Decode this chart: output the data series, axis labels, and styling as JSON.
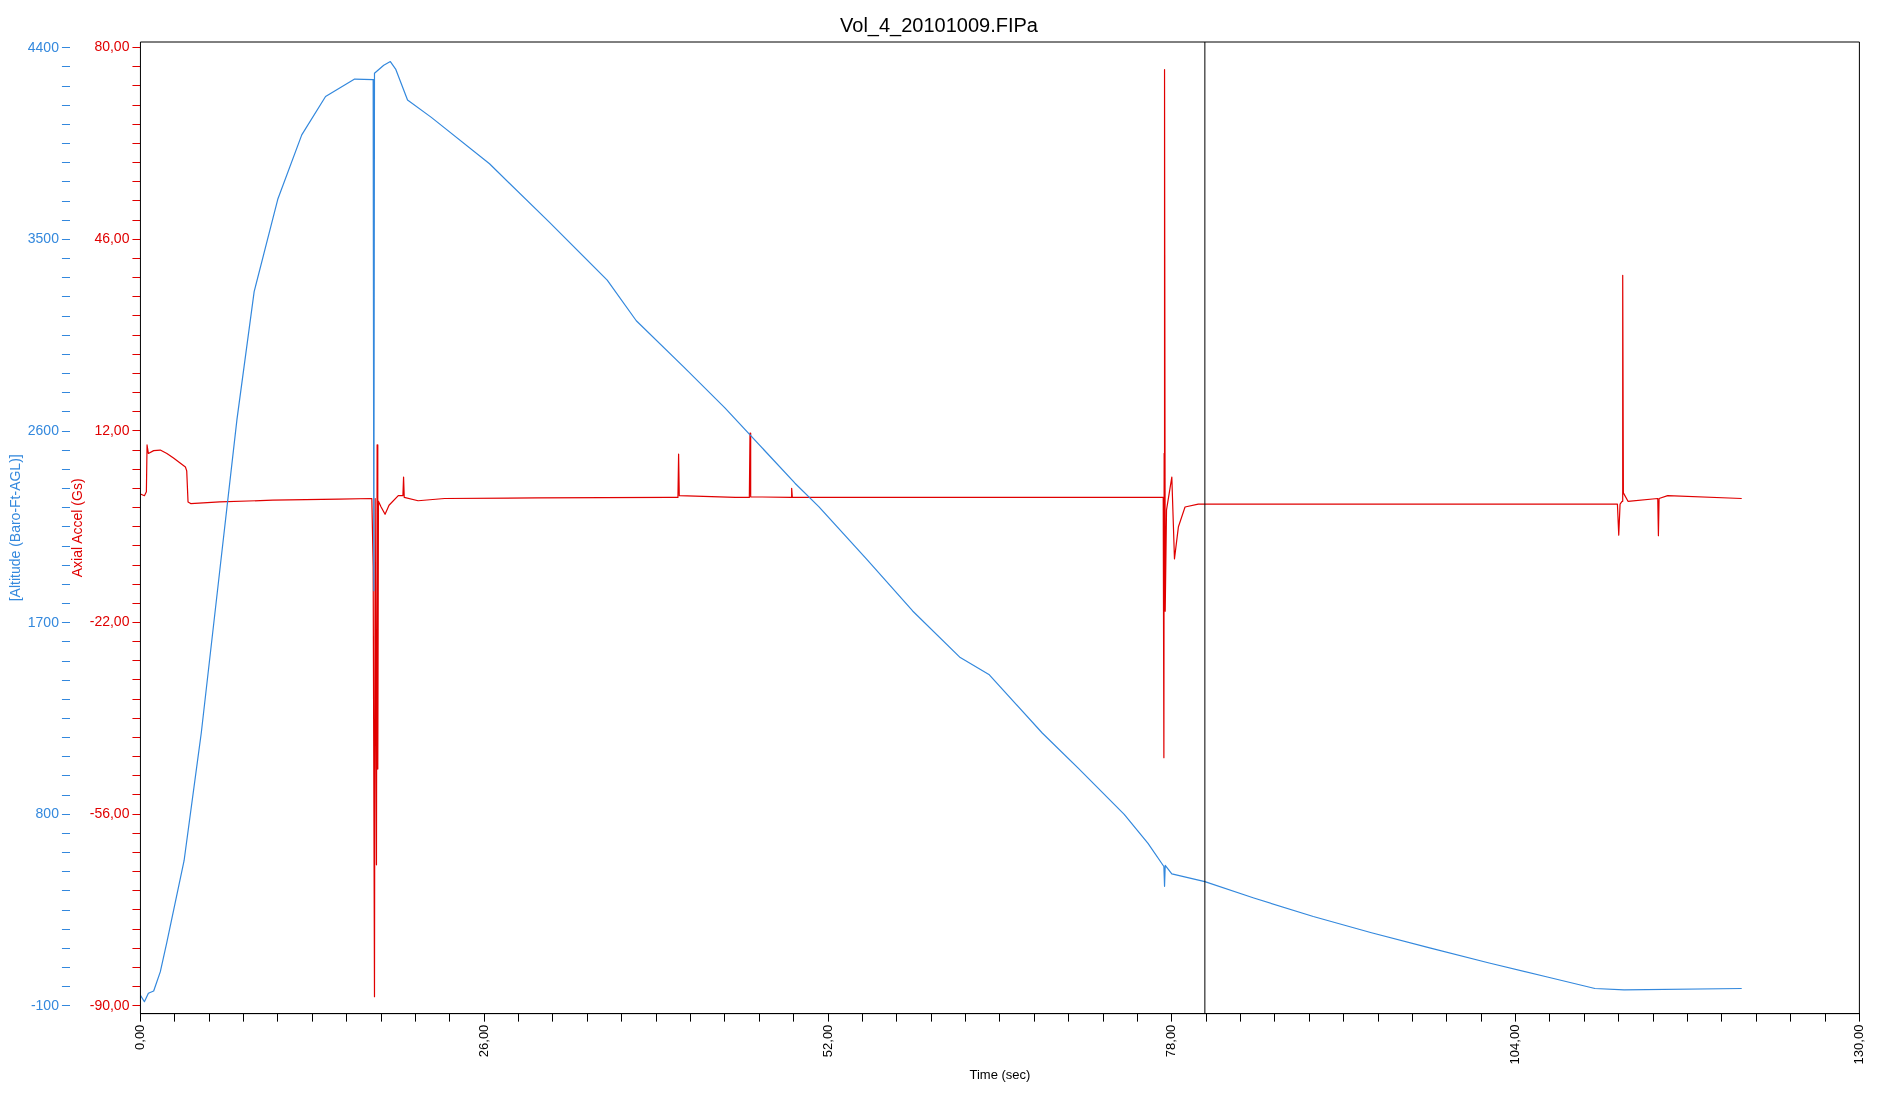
{
  "chart_data": {
    "type": "line",
    "title": "Vol_4_20101009.FIPa",
    "xlabel": "Time (sec)",
    "ylabel": "Axial Accel (Gs)",
    "y2label": "[Altitude (Baro-Ft-AGL)]",
    "marker": "none",
    "line_style": "solid",
    "xlim": [
      0,
      130
    ],
    "xticks": [
      {
        "value": 0,
        "label": "0,00"
      },
      {
        "value": 2.6,
        "label": null
      },
      {
        "value": 5.2,
        "label": null
      },
      {
        "value": 7.8,
        "label": null
      },
      {
        "value": 10.4,
        "label": null
      },
      {
        "value": 13,
        "label": null
      },
      {
        "value": 15.6,
        "label": null
      },
      {
        "value": 18.2,
        "label": null
      },
      {
        "value": 20.8,
        "label": null
      },
      {
        "value": 23.4,
        "label": null
      },
      {
        "value": 26,
        "label": "26,00"
      },
      {
        "value": 28.6,
        "label": null
      },
      {
        "value": 31.2,
        "label": null
      },
      {
        "value": 33.8,
        "label": null
      },
      {
        "value": 36.4,
        "label": null
      },
      {
        "value": 39,
        "label": null
      },
      {
        "value": 41.6,
        "label": null
      },
      {
        "value": 44.2,
        "label": null
      },
      {
        "value": 46.8,
        "label": null
      },
      {
        "value": 49.4,
        "label": null
      },
      {
        "value": 52,
        "label": "52,00"
      },
      {
        "value": 54.6,
        "label": null
      },
      {
        "value": 57.2,
        "label": null
      },
      {
        "value": 59.8,
        "label": null
      },
      {
        "value": 62.4,
        "label": null
      },
      {
        "value": 65,
        "label": null
      },
      {
        "value": 67.6,
        "label": null
      },
      {
        "value": 70.2,
        "label": null
      },
      {
        "value": 72.8,
        "label": null
      },
      {
        "value": 75.4,
        "label": null
      },
      {
        "value": 78,
        "label": "78,00"
      },
      {
        "value": 80.6,
        "label": null
      },
      {
        "value": 83.2,
        "label": null
      },
      {
        "value": 85.8,
        "label": null
      },
      {
        "value": 88.4,
        "label": null
      },
      {
        "value": 91,
        "label": null
      },
      {
        "value": 93.6,
        "label": null
      },
      {
        "value": 96.2,
        "label": null
      },
      {
        "value": 98.8,
        "label": null
      },
      {
        "value": 101.4,
        "label": null
      },
      {
        "value": 104,
        "label": "104,00"
      },
      {
        "value": 106.6,
        "label": null
      },
      {
        "value": 109.2,
        "label": null
      },
      {
        "value": 111.8,
        "label": null
      },
      {
        "value": 114.4,
        "label": null
      },
      {
        "value": 117,
        "label": null
      },
      {
        "value": 119.6,
        "label": null
      },
      {
        "value": 122.2,
        "label": null
      },
      {
        "value": 124.8,
        "label": null
      },
      {
        "value": 127.4,
        "label": null
      },
      {
        "value": 130,
        "label": "130,00"
      }
    ],
    "ylim": [
      -91.4,
      81
    ],
    "yticks": [
      {
        "value": -90,
        "label": "-90,00"
      },
      {
        "value": -86.6,
        "label": null
      },
      {
        "value": -83.2,
        "label": null
      },
      {
        "value": -79.8,
        "label": null
      },
      {
        "value": -76.4,
        "label": null
      },
      {
        "value": -73,
        "label": null
      },
      {
        "value": -69.6,
        "label": null
      },
      {
        "value": -66.2,
        "label": null
      },
      {
        "value": -62.8,
        "label": null
      },
      {
        "value": -59.4,
        "label": null
      },
      {
        "value": -56,
        "label": "-56,00"
      },
      {
        "value": -52.6,
        "label": null
      },
      {
        "value": -49.2,
        "label": null
      },
      {
        "value": -45.8,
        "label": null
      },
      {
        "value": -42.4,
        "label": null
      },
      {
        "value": -39,
        "label": null
      },
      {
        "value": -35.6,
        "label": null
      },
      {
        "value": -32.2,
        "label": null
      },
      {
        "value": -28.8,
        "label": null
      },
      {
        "value": -25.4,
        "label": null
      },
      {
        "value": -22,
        "label": "-22,00"
      },
      {
        "value": -18.6,
        "label": null
      },
      {
        "value": -15.2,
        "label": null
      },
      {
        "value": -11.8,
        "label": null
      },
      {
        "value": -8.4,
        "label": null
      },
      {
        "value": -5,
        "label": null
      },
      {
        "value": -1.6,
        "label": null
      },
      {
        "value": 1.8,
        "label": null
      },
      {
        "value": 5.2,
        "label": null
      },
      {
        "value": 8.6,
        "label": null
      },
      {
        "value": 12,
        "label": "12,00"
      },
      {
        "value": 15.4,
        "label": null
      },
      {
        "value": 18.8,
        "label": null
      },
      {
        "value": 22.2,
        "label": null
      },
      {
        "value": 25.6,
        "label": null
      },
      {
        "value": 29,
        "label": null
      },
      {
        "value": 32.4,
        "label": null
      },
      {
        "value": 35.8,
        "label": null
      },
      {
        "value": 39.2,
        "label": null
      },
      {
        "value": 42.6,
        "label": null
      },
      {
        "value": 46,
        "label": "46,00"
      },
      {
        "value": 49.4,
        "label": null
      },
      {
        "value": 52.8,
        "label": null
      },
      {
        "value": 56.2,
        "label": null
      },
      {
        "value": 59.6,
        "label": null
      },
      {
        "value": 63,
        "label": null
      },
      {
        "value": 66.4,
        "label": null
      },
      {
        "value": 69.8,
        "label": null
      },
      {
        "value": 73.2,
        "label": null
      },
      {
        "value": 76.6,
        "label": null
      },
      {
        "value": 80,
        "label": "80,00"
      }
    ],
    "y2lim": [
      -136,
      4427
    ],
    "y2ticks": [
      -100,
      {
        "value": -10,
        "label": null
      },
      {
        "value": 80,
        "label": null
      },
      {
        "value": 170,
        "label": null
      },
      {
        "value": 260,
        "label": null
      },
      {
        "value": 350,
        "label": null
      },
      {
        "value": 440,
        "label": null
      },
      {
        "value": 530,
        "label": null
      },
      {
        "value": 620,
        "label": null
      },
      {
        "value": 710,
        "label": null
      },
      800,
      {
        "value": 890,
        "label": null
      },
      {
        "value": 980,
        "label": null
      },
      {
        "value": 1070,
        "label": null
      },
      {
        "value": 1160,
        "label": null
      },
      {
        "value": 1250,
        "label": null
      },
      {
        "value": 1340,
        "label": null
      },
      {
        "value": 1430,
        "label": null
      },
      {
        "value": 1520,
        "label": null
      },
      {
        "value": 1610,
        "label": null
      },
      1700,
      {
        "value": 1790,
        "label": null
      },
      {
        "value": 1880,
        "label": null
      },
      {
        "value": 1970,
        "label": null
      },
      {
        "value": 2060,
        "label": null
      },
      {
        "value": 2150,
        "label": null
      },
      {
        "value": 2240,
        "label": null
      },
      {
        "value": 2330,
        "label": null
      },
      {
        "value": 2420,
        "label": null
      },
      {
        "value": 2510,
        "label": null
      },
      2600,
      {
        "value": 2690,
        "label": null
      },
      {
        "value": 2780,
        "label": null
      },
      {
        "value": 2870,
        "label": null
      },
      {
        "value": 2960,
        "label": null
      },
      {
        "value": 3050,
        "label": null
      },
      {
        "value": 3140,
        "label": null
      },
      {
        "value": 3230,
        "label": null
      },
      {
        "value": 3320,
        "label": null
      },
      {
        "value": 3410,
        "label": null
      },
      3500,
      {
        "value": 3590,
        "label": null
      },
      {
        "value": 3680,
        "label": null
      },
      {
        "value": 3770,
        "label": null
      },
      {
        "value": 3860,
        "label": null
      },
      {
        "value": 3950,
        "label": null
      },
      {
        "value": 4040,
        "label": null
      },
      {
        "value": 4130,
        "label": null
      },
      {
        "value": 4220,
        "label": null
      },
      {
        "value": 4310,
        "label": null
      },
      4400
    ],
    "ref_lines": [
      {
        "axis": "x",
        "value": 80.5,
        "color": "#000000"
      }
    ],
    "series": [
      {
        "color": "#3388dd",
        "axis": "y2",
        "x": [
          0,
          0.3,
          0.6,
          1.0,
          1.5,
          2.0,
          3.3,
          4.6,
          6.0,
          7.3,
          8.6,
          10.4,
          12.2,
          14.0,
          16.2,
          17.6,
          17.65,
          17.7,
          18.4,
          18.9,
          19.3,
          20.2,
          22.0,
          26.4,
          30.9,
          35.3,
          37.5,
          41.1,
          44.2,
          49.5,
          51.3,
          54.9,
          58.4,
          62.0,
          64.2,
          68.2,
          70.9,
          74.4,
          76.2,
          77.4,
          77.45,
          77.5,
          78,
          80.5,
          84.2,
          88.7,
          93.1,
          97.5,
          102.0,
          106.4,
          110.0,
          112.2,
          121.1
        ],
        "values": [
          -50,
          -80,
          -40,
          -30,
          60,
          200,
          582,
          1182,
          1945,
          2655,
          3255,
          3691,
          3991,
          4171,
          4253,
          4250,
          1850,
          4280,
          4318,
          4335,
          4300,
          4155,
          4073,
          3855,
          3582,
          3309,
          3118,
          2900,
          2709,
          2355,
          2245,
          2000,
          1755,
          1536,
          1455,
          1182,
          1018,
          800,
          664,
          555,
          462,
          560,
          520,
          484,
          407,
          320,
          244,
          173,
          102,
          36,
          -18,
          -24,
          -18
        ]
      },
      {
        "color": "#e00000",
        "axis": "y",
        "x": [
          0,
          0.3,
          0.45,
          0.5,
          0.6,
          1.0,
          1.5,
          2.0,
          2.5,
          3.0,
          3.4,
          3.5,
          3.6,
          3.8,
          6,
          10,
          15,
          17.5,
          17.6,
          17.7,
          17.75,
          17.85,
          17.9,
          17.95,
          18.0,
          18.2,
          18.5,
          18.8,
          19.5,
          19.85,
          19.9,
          19.95,
          21,
          23,
          30,
          40,
          40.65,
          40.7,
          40.75,
          45,
          46.05,
          46.1,
          46.15,
          49.2,
          49.25,
          49.3,
          55,
          65,
          77.35,
          77.4,
          77.42,
          77.45,
          77.5,
          77.6,
          78.0,
          78.2,
          78.5,
          79,
          80,
          90,
          100,
          111.7,
          111.8,
          111.9,
          112.05,
          112.1,
          112.15,
          112.5,
          114.75,
          114.8,
          114.85,
          115.5,
          121.1
        ],
        "values": [
          0.8,
          0.5,
          1.2,
          9.5,
          8,
          8.5,
          8.6,
          8.0,
          7.2,
          6.3,
          5.6,
          4.9,
          -0.6,
          -0.9,
          -0.6,
          -0.3,
          -0.1,
          0,
          -12,
          -88.4,
          0,
          -65,
          9.5,
          -48,
          -0.5,
          -1.5,
          -2.8,
          -1.2,
          0.5,
          0.5,
          3.8,
          0.2,
          -0.4,
          0,
          0.1,
          0.2,
          0.2,
          7.9,
          0.5,
          0.2,
          0.2,
          11.6,
          0.3,
          0.2,
          1.8,
          0.2,
          0.2,
          0.2,
          0.2,
          -46,
          8,
          76.1,
          -20,
          -2,
          3.8,
          -10.7,
          -5,
          -1.5,
          -1,
          -1,
          -1,
          -1,
          -6.5,
          -1,
          -0.5,
          39.6,
          1,
          -0.5,
          0,
          -6.6,
          0,
          0.5,
          0
        ]
      }
    ]
  }
}
